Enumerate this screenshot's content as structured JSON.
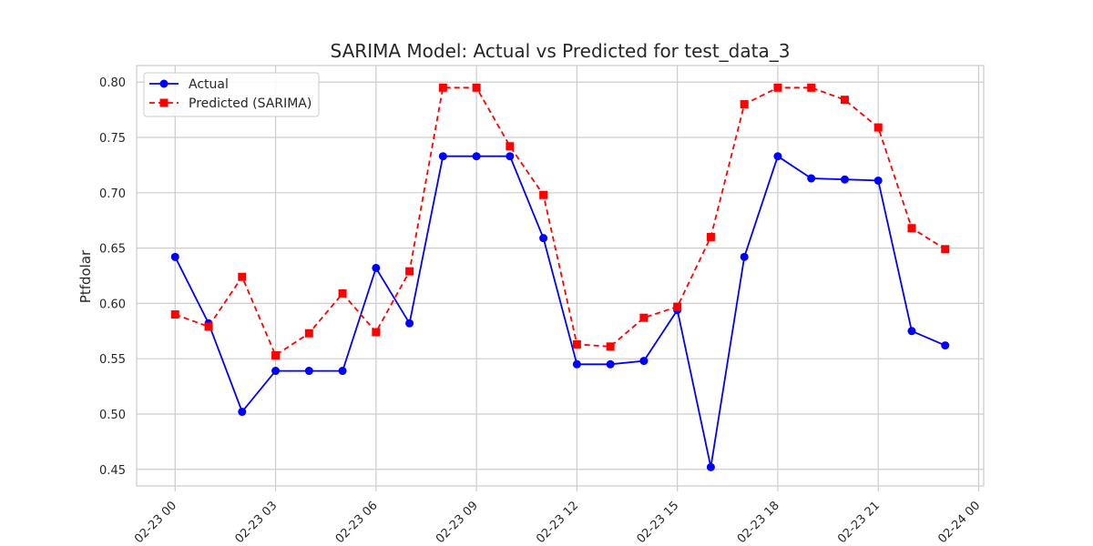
{
  "chart_data": {
    "type": "line",
    "title": "SARIMA Model: Actual vs Predicted for test_data_3",
    "xlabel": "",
    "ylabel": "Ptfdolar",
    "x": [
      "2024-02-23 00:00",
      "2024-02-23 01:00",
      "2024-02-23 02:00",
      "2024-02-23 03:00",
      "2024-02-23 04:00",
      "2024-02-23 05:00",
      "2024-02-23 06:00",
      "2024-02-23 07:00",
      "2024-02-23 08:00",
      "2024-02-23 09:00",
      "2024-02-23 10:00",
      "2024-02-23 11:00",
      "2024-02-23 12:00",
      "2024-02-23 13:00",
      "2024-02-23 14:00",
      "2024-02-23 15:00",
      "2024-02-23 16:00",
      "2024-02-23 17:00",
      "2024-02-23 18:00",
      "2024-02-23 19:00",
      "2024-02-23 20:00",
      "2024-02-23 21:00",
      "2024-02-23 22:00",
      "2024-02-23 23:00"
    ],
    "xticks": [
      "02-23 00",
      "02-23 03",
      "02-23 06",
      "02-23 09",
      "02-23 12",
      "02-23 15",
      "02-23 18",
      "02-23 21",
      "02-24 00"
    ],
    "yticks": [
      "0.45",
      "0.50",
      "0.55",
      "0.60",
      "0.65",
      "0.70",
      "0.75",
      "0.80"
    ],
    "ylim": [
      0.435,
      0.815
    ],
    "xlim_hours": [
      -1.15,
      24.15
    ],
    "grid": true,
    "legend_position": "top-left",
    "series": [
      {
        "name": "Actual",
        "color": "#0000ff",
        "marker": "circle",
        "line_style": "solid",
        "values": [
          0.642,
          0.582,
          0.502,
          0.539,
          0.539,
          0.539,
          0.632,
          0.582,
          0.733,
          0.733,
          0.733,
          0.659,
          0.545,
          0.545,
          0.548,
          0.594,
          0.452,
          0.642,
          0.733,
          0.713,
          0.712,
          0.711,
          0.575,
          0.562
        ]
      },
      {
        "name": "Predicted (SARIMA)",
        "color": "#ff0000",
        "marker": "square",
        "line_style": "dashed",
        "values": [
          0.59,
          0.579,
          0.624,
          0.553,
          0.573,
          0.609,
          0.574,
          0.629,
          0.795,
          0.795,
          0.742,
          0.698,
          0.563,
          0.561,
          0.587,
          0.597,
          0.66,
          0.78,
          0.795,
          0.795,
          0.784,
          0.759,
          0.668,
          0.649
        ]
      }
    ]
  }
}
